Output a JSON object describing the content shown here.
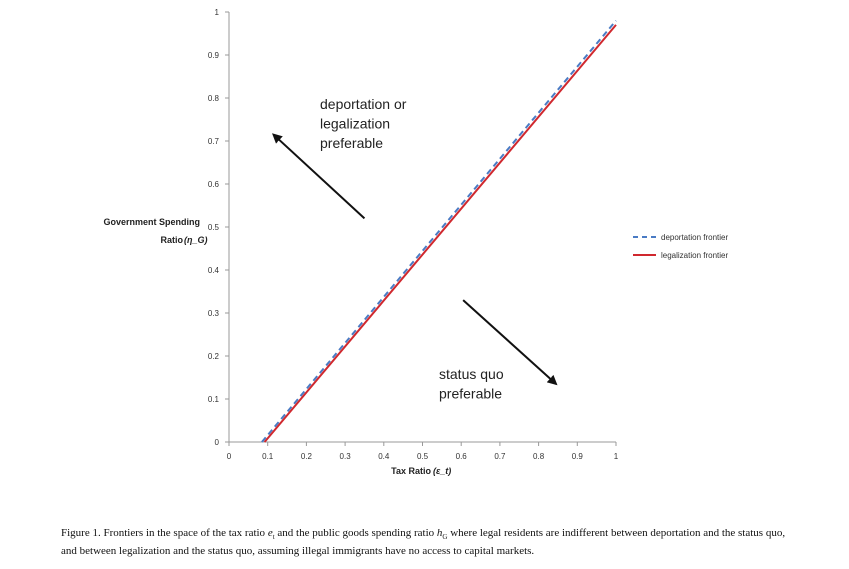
{
  "chart_data": {
    "type": "line",
    "xlabel": "Tax Ratio",
    "xlabel_symbol": "(ε_t)",
    "ylabel_line1": "Government Spending",
    "ylabel_line2": "Ratio",
    "ylabel_symbol": "(η_G)",
    "xlim": [
      0,
      1
    ],
    "ylim": [
      0,
      1
    ],
    "x_ticks": [
      0,
      0.1,
      0.2,
      0.3,
      0.4,
      0.5,
      0.6,
      0.7,
      0.8,
      0.9,
      1
    ],
    "x_tick_labels": [
      "0",
      "0.1",
      "0.2",
      "0.3",
      "0.4",
      "0.5",
      "0.6",
      "0.7",
      "0.8",
      "0.9",
      "1"
    ],
    "y_ticks": [
      0,
      0.1,
      0.2,
      0.3,
      0.4,
      0.5,
      0.6,
      0.7,
      0.8,
      0.9,
      1
    ],
    "y_tick_labels": [
      "0",
      "0.1",
      "0.2",
      "0.3",
      "0.4",
      "0.5",
      "0.6",
      "0.7",
      "0.8",
      "0.9",
      "1"
    ],
    "grid": false,
    "legend_position": "right",
    "series": [
      {
        "name": "deportation frontier",
        "style": "dashed",
        "color": "#4a7bc4",
        "x": [
          0.085,
          1.0
        ],
        "y": [
          0.0,
          0.98
        ]
      },
      {
        "name": "legalization frontier",
        "style": "solid",
        "color": "#d0282e",
        "x": [
          0.092,
          1.0
        ],
        "y": [
          0.0,
          0.97
        ]
      }
    ],
    "annotations": [
      {
        "lines": [
          "deportation or",
          "legalization",
          "preferable"
        ],
        "arrow_from": [
          0.35,
          0.52
        ],
        "arrow_to": [
          0.115,
          0.715
        ]
      },
      {
        "lines": [
          "status quo",
          "preferable"
        ],
        "arrow_from": [
          0.605,
          0.33
        ],
        "arrow_to": [
          0.845,
          0.135
        ]
      }
    ]
  },
  "caption": {
    "part1": "Figure 1. Frontiers in the space of the tax ratio ",
    "sym1": "e",
    "sub1": "t",
    "part2": " and the public goods spending ratio ",
    "sym2": "h",
    "sub2": "G",
    "part3": " where legal residents are indifferent between deportation and the status quo, and between legalization and the status quo, assuming illegal immigrants have no access to capital markets."
  }
}
